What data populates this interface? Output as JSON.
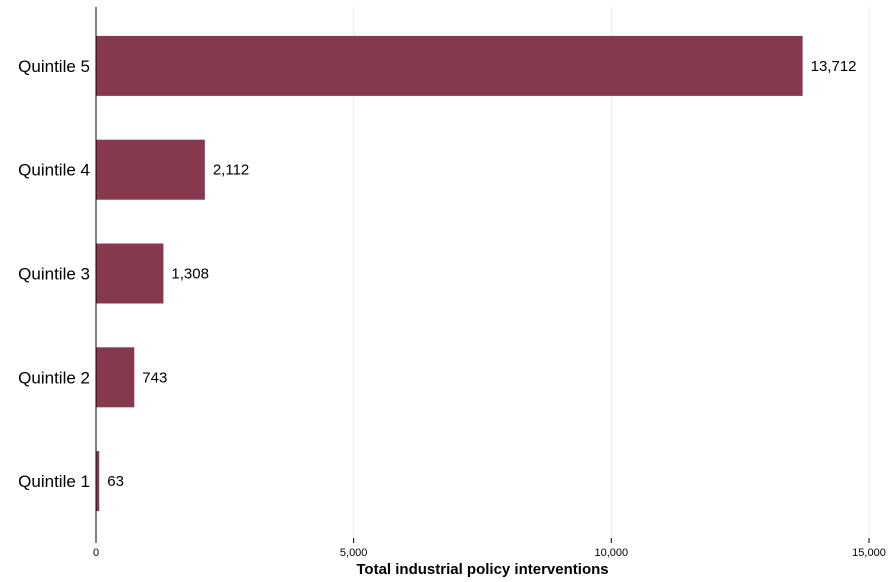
{
  "chart_data": {
    "type": "bar",
    "orientation": "horizontal",
    "title": "",
    "xlabel": "Total industrial policy interventions",
    "ylabel": "",
    "categories": [
      "Quintile 5",
      "Quintile 4",
      "Quintile 3",
      "Quintile 2",
      "Quintile 1"
    ],
    "values": [
      13712,
      2112,
      1308,
      743,
      63
    ],
    "value_labels": [
      "13,712",
      "2,112",
      "1,308",
      "743",
      "63"
    ],
    "xlim": [
      0,
      15000
    ],
    "x_ticks": [
      0,
      5000,
      10000,
      15000
    ],
    "x_tick_labels": [
      "0",
      "5,000",
      "10,000",
      "15,000"
    ],
    "grid": "vertical",
    "legend": "none",
    "bar_color": "#86384d"
  }
}
